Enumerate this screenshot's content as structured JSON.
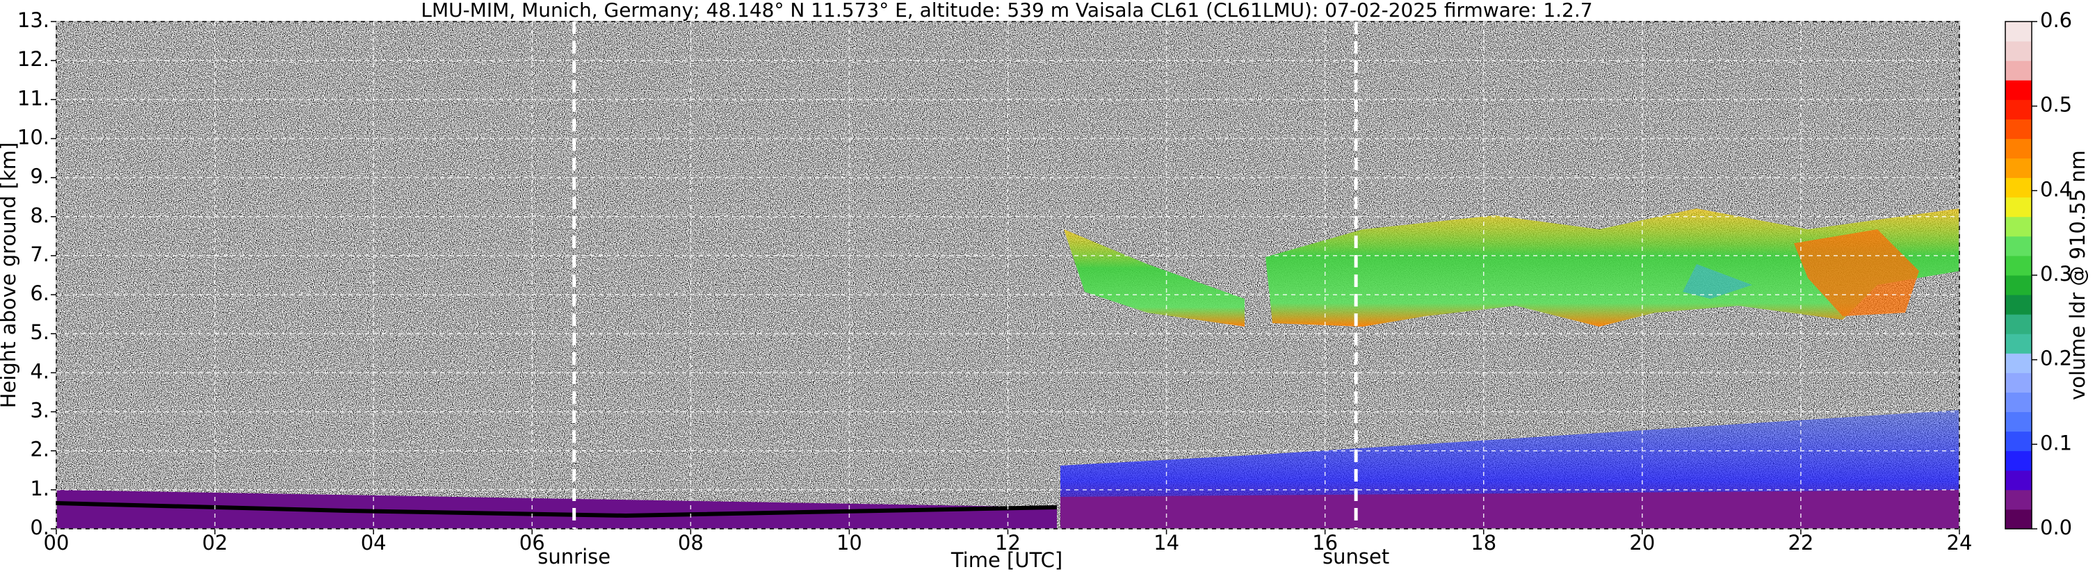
{
  "chart_data": {
    "type": "heatmap",
    "title": "LMU-MIM, Munich, Germany; 48.148° N 11.573° E, altitude: 539 m    Vaisala CL61 (CL61LMU): 07-02-2025    firmware: 1.2.7",
    "x_label": "Time [UTC]",
    "y_label": "Height above ground [km]",
    "xlim": [
      0,
      24
    ],
    "xticks": [
      {
        "value": 0,
        "label": "00"
      },
      {
        "value": 2,
        "label": "02"
      },
      {
        "value": 4,
        "label": "04"
      },
      {
        "value": 6,
        "label": "06"
      },
      {
        "value": 8,
        "label": "08"
      },
      10,
      12,
      14,
      16,
      18,
      20,
      22,
      24
    ],
    "ylim": [
      0,
      13
    ],
    "yticks": [
      {
        "value": 0,
        "label": "0."
      },
      {
        "value": 1,
        "label": "1."
      },
      {
        "value": 2,
        "label": "2."
      },
      {
        "value": 3,
        "label": "3."
      },
      {
        "value": 4,
        "label": "4."
      },
      {
        "value": 5,
        "label": "5."
      },
      {
        "value": 6,
        "label": "6."
      },
      {
        "value": 7,
        "label": "7."
      },
      {
        "value": 8,
        "label": "8."
      },
      {
        "value": 9,
        "label": "9."
      },
      {
        "value": 10,
        "label": "10."
      },
      {
        "value": 11,
        "label": "11."
      },
      {
        "value": 12,
        "label": "12."
      },
      {
        "value": 13,
        "label": "13."
      }
    ],
    "grid": true,
    "vlines": [
      {
        "x": 6.53,
        "label": "sunrise"
      },
      {
        "x": 16.39,
        "label": "sunset"
      }
    ],
    "colorbar": {
      "label": "volume ldr @ 910.55 nm",
      "lim": [
        0,
        0.6
      ],
      "ticks": [
        {
          "value": 0,
          "label": "0.0"
        },
        0.1,
        0.2,
        0.3,
        0.4,
        0.5,
        0.6
      ],
      "colors": [
        "#5a005a",
        "#7a1a8a",
        "#4b00d0",
        "#2020ff",
        "#3050ff",
        "#5078ff",
        "#7090ff",
        "#90a8ff",
        "#a0c0ff",
        "#40c0a0",
        "#30b080",
        "#109040",
        "#20b030",
        "#40d040",
        "#60e060",
        "#a0f050",
        "#f0f020",
        "#ffd000",
        "#ffa000",
        "#ff8000",
        "#ff5000",
        "#ff2000",
        "#ff0000",
        "#f0b0b0",
        "#f0d0d0",
        "#f4e4e4"
      ]
    }
  }
}
